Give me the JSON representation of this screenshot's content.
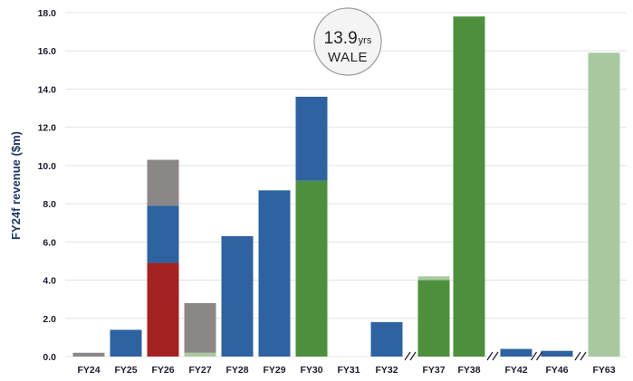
{
  "chart_data": {
    "type": "bar",
    "stacked": true,
    "ylabel": "FY24f revenue ($m)",
    "xlabel": "",
    "ylim": [
      0,
      18
    ],
    "yticks": [
      "0.0",
      "2.0",
      "4.0",
      "6.0",
      "8.0",
      "10.0",
      "12.0",
      "14.0",
      "16.0",
      "18.0"
    ],
    "grid": true,
    "axis_breaks_after": [
      "FY32",
      "FY38",
      "FY42",
      "FY46"
    ],
    "categories": [
      "FY24",
      "FY25",
      "FY26",
      "FY27",
      "FY28",
      "FY29",
      "FY30",
      "FY31",
      "FY32",
      "FY37",
      "FY38",
      "FY42",
      "FY46",
      "FY63"
    ],
    "series": [
      {
        "color": "#a32222",
        "values": [
          0,
          0,
          4.9,
          0,
          0,
          0,
          0,
          0,
          0,
          0,
          0,
          0,
          0,
          0
        ]
      },
      {
        "color": "#4e8f3e",
        "values": [
          0,
          0,
          0,
          0,
          0,
          0,
          9.2,
          0,
          0,
          4.0,
          17.8,
          0,
          0,
          0
        ]
      },
      {
        "color": "#a8c9a0",
        "values": [
          0,
          0,
          0,
          0.2,
          0,
          0,
          0,
          0,
          0,
          0.2,
          0,
          0,
          0,
          15.9
        ]
      },
      {
        "color": "#2e62a0",
        "values": [
          0,
          1.4,
          3.0,
          0,
          6.3,
          8.7,
          4.4,
          0,
          1.8,
          0,
          0,
          0.4,
          0.3,
          0
        ]
      },
      {
        "color": "#8c8787",
        "values": [
          0.2,
          0,
          2.4,
          2.6,
          0,
          0,
          0,
          0,
          0,
          0,
          0,
          0,
          0,
          0
        ]
      }
    ]
  },
  "wale_badge": {
    "value": "13.9",
    "unit": "yrs",
    "label": "WALE"
  }
}
